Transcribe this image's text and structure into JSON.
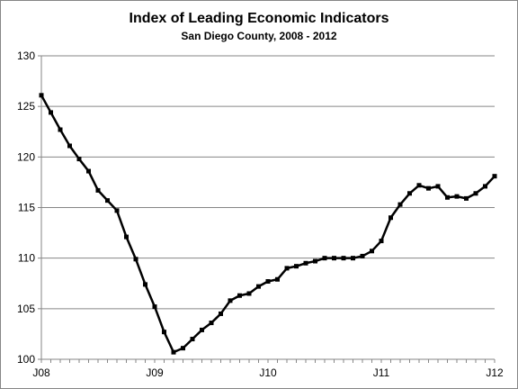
{
  "chart_data": {
    "type": "line",
    "title": "Index of Leading Economic Indicators",
    "subtitle": "San Diego County, 2008 - 2012",
    "xlabel": "",
    "ylabel": "",
    "ylim": [
      100,
      130
    ],
    "yticks": [
      100,
      105,
      110,
      115,
      120,
      125,
      130
    ],
    "xlim": [
      0,
      48
    ],
    "xticks": [
      {
        "index": 0,
        "label": "J08"
      },
      {
        "index": 12,
        "label": "J09"
      },
      {
        "index": 24,
        "label": "J10"
      },
      {
        "index": 36,
        "label": "J11"
      },
      {
        "index": 48,
        "label": "J12"
      }
    ],
    "grid": "horizontal",
    "legend": "none",
    "series": [
      {
        "color": "#000000",
        "values": [
          126.1,
          124.4,
          122.7,
          121.1,
          119.8,
          118.6,
          116.7,
          115.7,
          114.7,
          112.1,
          109.9,
          107.4,
          105.2,
          102.7,
          100.7,
          101.1,
          102.0,
          102.9,
          103.6,
          104.5,
          105.8,
          106.3,
          106.5,
          107.2,
          107.7,
          107.9,
          109.0,
          109.2,
          109.5,
          109.7,
          110.0,
          110.0,
          110.0,
          110.0,
          110.2,
          110.7,
          111.7,
          114.0,
          115.3,
          116.4,
          117.2,
          116.9,
          117.1,
          116.0,
          116.1,
          115.9,
          116.4,
          117.1,
          118.1
        ]
      }
    ]
  }
}
